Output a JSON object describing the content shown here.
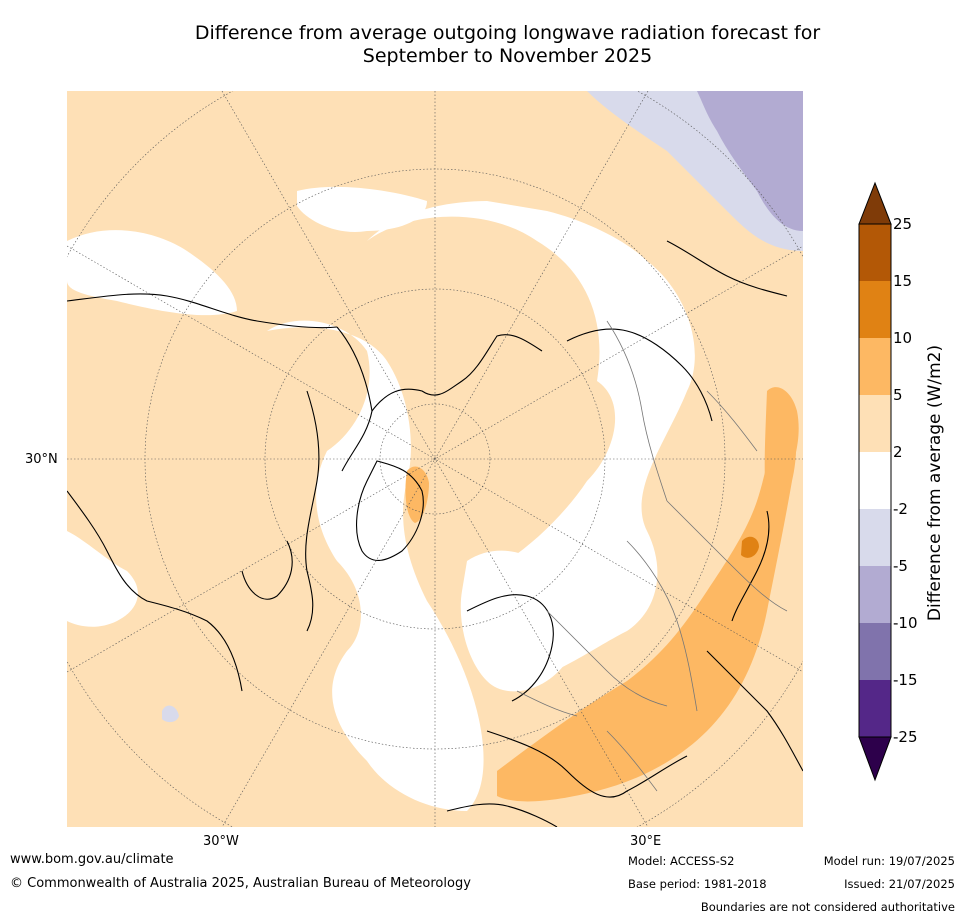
{
  "title_line1": "Difference from average outgoing longwave radiation forecast for",
  "title_line2": "September to November 2025",
  "map": {
    "lat_labels": [
      "30°N"
    ],
    "lon_labels": [
      "30°W",
      "30°E"
    ]
  },
  "colorbar": {
    "label": "Difference from average (W/m2)",
    "ticks": [
      "25",
      "15",
      "10",
      "5",
      "2",
      "-2",
      "-5",
      "-10",
      "-15",
      "-25"
    ],
    "colors": {
      "over": "#7f3b08",
      "b15_25": "#b35806",
      "b10_15": "#e08214",
      "b5_10": "#fdb863",
      "b2_5": "#fee0b6",
      "bm2_2": "#ffffff",
      "bm5_m2": "#d8daeb",
      "bm10_m5": "#b2abd2",
      "bm15_m10": "#8073ac",
      "bm25_m15": "#542788",
      "under": "#2d004b"
    }
  },
  "footer": {
    "website": "www.bom.gov.au/climate",
    "copyright": "© Commonwealth of Australia 2025, Australian Bureau of Meteorology",
    "model": "Model: ACCESS-S2",
    "base_period": "Base period: 1981-2018",
    "model_run": "Model run: 19/07/2025",
    "issued": "Issued: 21/07/2025",
    "boundaries": "Boundaries are not considered authoritative"
  }
}
